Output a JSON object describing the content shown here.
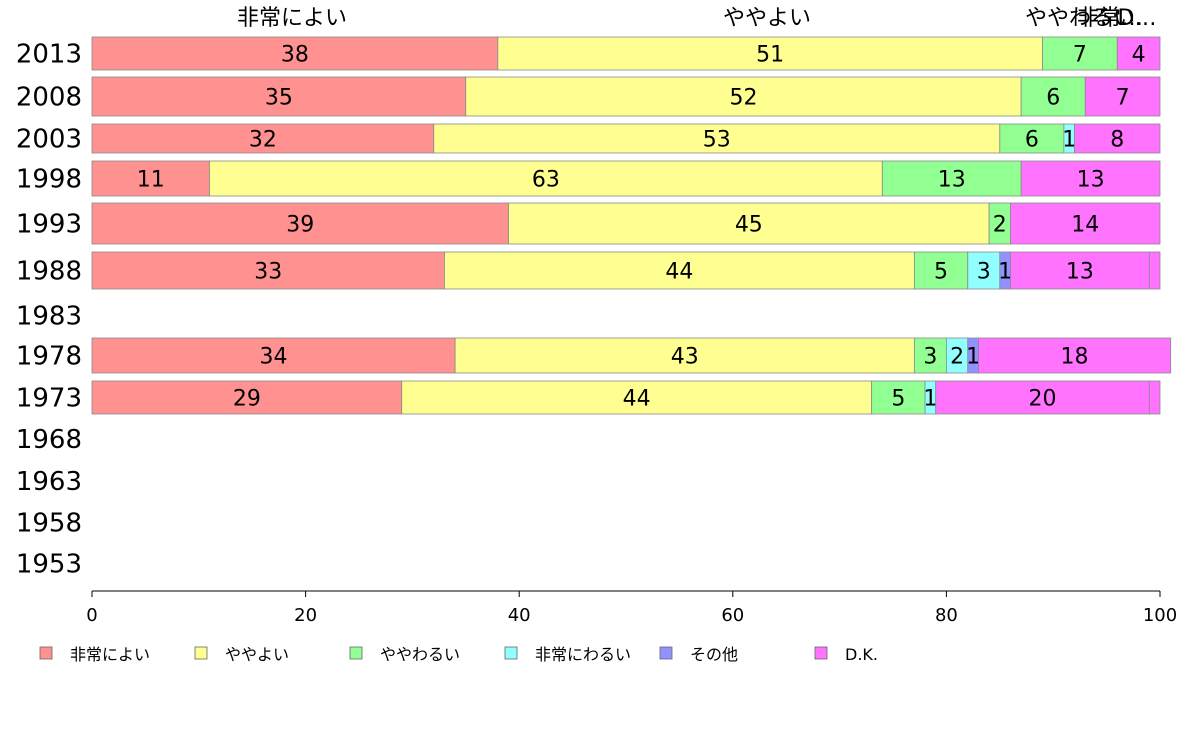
{
  "chart_data": {
    "type": "bar",
    "orientation": "horizontal",
    "stacked": true,
    "title": "",
    "xlabel": "",
    "ylabel": "",
    "xlim": [
      0,
      100
    ],
    "xticks": [
      "0",
      "20",
      "40",
      "60",
      "80",
      "100"
    ],
    "grid": false,
    "legend_position": "bottom",
    "header_labels": [
      "非常によい",
      "ややよい",
      "ややわるい",
      "非常…",
      "D…"
    ],
    "categories": [
      "2013",
      "2008",
      "2003",
      "1998",
      "1993",
      "1988",
      "1983",
      "1978",
      "1973",
      "1968",
      "1963",
      "1958",
      "1953"
    ],
    "series": [
      {
        "name": "非常によい",
        "color": "#ff9191",
        "values": [
          38,
          35,
          32,
          11,
          39,
          33,
          null,
          34,
          29,
          null,
          null,
          null,
          null
        ]
      },
      {
        "name": "ややよい",
        "color": "#ffff91",
        "values": [
          51,
          52,
          53,
          63,
          45,
          44,
          null,
          43,
          44,
          null,
          null,
          null,
          null
        ]
      },
      {
        "name": "ややわるい",
        "color": "#91ff91",
        "values": [
          7,
          6,
          6,
          13,
          2,
          5,
          null,
          3,
          5,
          null,
          null,
          null,
          null
        ]
      },
      {
        "name": "非常にわるい",
        "color": "#91ffff",
        "values": [
          0,
          0,
          1,
          0,
          0,
          3,
          null,
          2,
          1,
          null,
          null,
          null,
          null
        ]
      },
      {
        "name": "その他",
        "color": "#9191ff",
        "values": [
          0,
          0,
          0,
          0,
          0,
          1,
          null,
          1,
          0,
          null,
          null,
          null,
          null
        ]
      },
      {
        "name": "D.K.",
        "color": "#ff73ff",
        "values": [
          4,
          7,
          8,
          13,
          14,
          13,
          null,
          18,
          20,
          null,
          null,
          null,
          null
        ]
      }
    ]
  }
}
